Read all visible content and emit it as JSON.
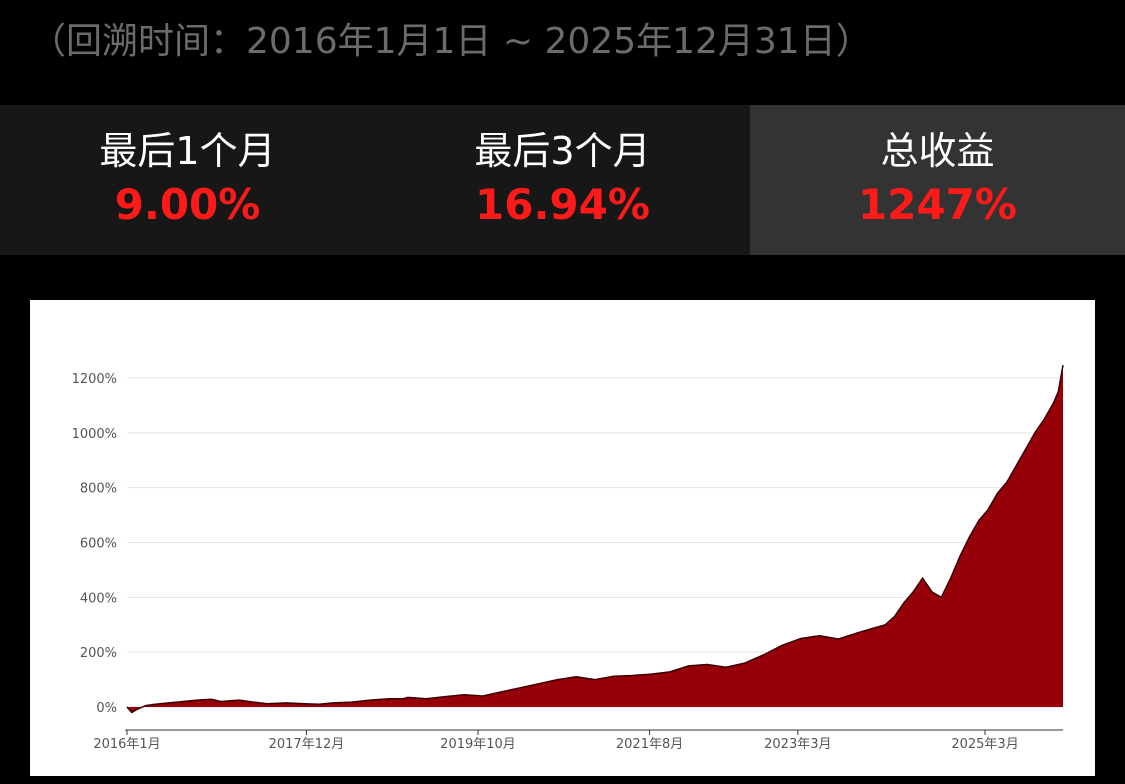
{
  "header": {
    "subtitle": "（回溯时间：2016年1月1日 ~ 2025年12月31日）"
  },
  "stats": [
    {
      "label": "最后1个月",
      "value": "9.00%"
    },
    {
      "label": "最后3个月",
      "value": "16.94%"
    },
    {
      "label": "总收益",
      "value": "1247%"
    }
  ],
  "colors": {
    "background": "#000000",
    "stat_bg": "#171717",
    "stat_bg_highlight": "#333333",
    "positive": "#ff1a1a",
    "area_fill": "#960008",
    "area_line": "#3a0003"
  },
  "chart_data": {
    "type": "area",
    "title": "",
    "xlabel": "",
    "ylabel": "",
    "ylim": [
      -80,
      1280
    ],
    "yticks": [
      0,
      200,
      400,
      600,
      800,
      1000,
      1200
    ],
    "ytick_labels": [
      "0%",
      "200%",
      "400%",
      "600%",
      "800%",
      "1000%",
      "1200%"
    ],
    "xlim": [
      2016.0,
      2026.0
    ],
    "xticks": [
      2016.0,
      2017.917,
      2019.75,
      2021.583,
      2023.167,
      2025.167
    ],
    "xtick_labels": [
      "2016年1月",
      "2017年12月",
      "2019年10月",
      "2021年8月",
      "2023年3月",
      "2025年3月"
    ],
    "grid": "horizontal",
    "legend": "none",
    "series": [
      {
        "x": [
          2016.0,
          2016.05,
          2016.1,
          2016.2,
          2016.3,
          2016.45,
          2016.6,
          2016.75,
          2016.9,
          2017.0,
          2017.2,
          2017.35,
          2017.5,
          2017.7,
          2017.9,
          2018.05,
          2018.2,
          2018.4,
          2018.6,
          2018.8,
          2018.95,
          2019.0,
          2019.2,
          2019.4,
          2019.6,
          2019.8,
          2020.0,
          2020.2,
          2020.4,
          2020.6,
          2020.8,
          2021.0,
          2021.2,
          2021.4,
          2021.6,
          2021.8,
          2022.0,
          2022.2,
          2022.4,
          2022.6,
          2022.8,
          2023.0,
          2023.2,
          2023.4,
          2023.6,
          2023.8,
          2024.0,
          2024.1,
          2024.2,
          2024.3,
          2024.4,
          2024.5,
          2024.6,
          2024.7,
          2024.8,
          2024.9,
          2025.0,
          2025.1,
          2025.2,
          2025.3,
          2025.4,
          2025.5,
          2025.6,
          2025.7,
          2025.8,
          2025.9,
          2025.95,
          2026.0
        ],
        "y": [
          0,
          -20,
          -10,
          5,
          10,
          15,
          20,
          25,
          28,
          20,
          25,
          18,
          12,
          15,
          12,
          10,
          15,
          18,
          25,
          30,
          30,
          35,
          30,
          38,
          45,
          40,
          55,
          70,
          85,
          100,
          110,
          100,
          112,
          115,
          120,
          128,
          150,
          155,
          145,
          160,
          190,
          225,
          250,
          260,
          248,
          270,
          290,
          300,
          330,
          380,
          420,
          470,
          420,
          400,
          470,
          550,
          620,
          680,
          720,
          780,
          820,
          880,
          940,
          1000,
          1050,
          1110,
          1150,
          1247
        ]
      }
    ]
  }
}
